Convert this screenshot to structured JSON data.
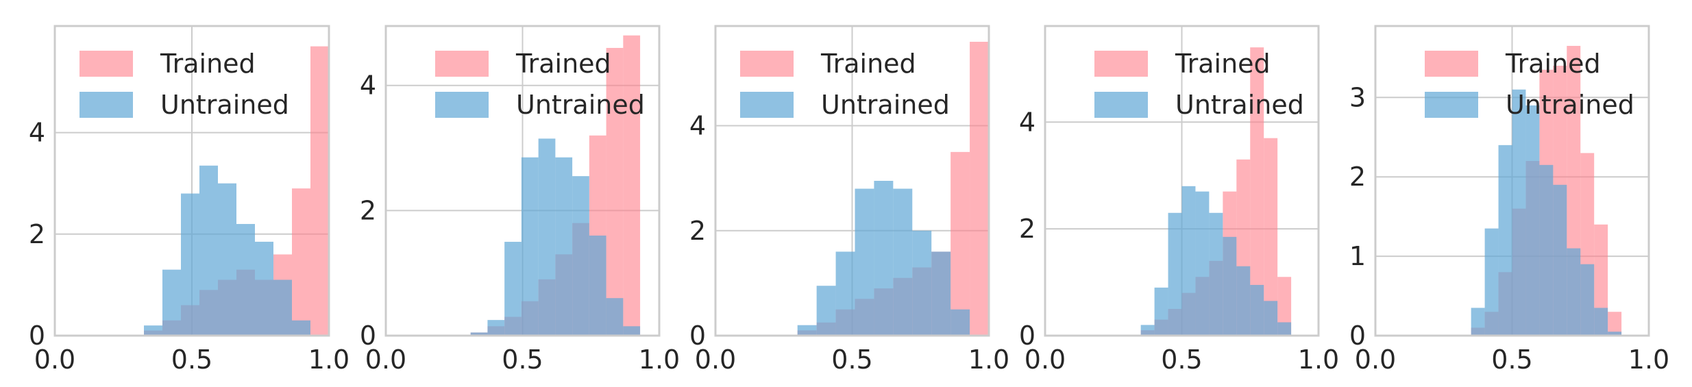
{
  "figure": {
    "colors": {
      "trained": "#ff7f8a",
      "untrained": "#5fa6d6",
      "grid": "#cccccc",
      "frame": "#cccccc",
      "text": "#262626"
    }
  },
  "chart_data": [
    {
      "type": "histogram",
      "title": "",
      "xlabel": "",
      "ylabel": "",
      "xlim": [
        0.0,
        1.0
      ],
      "ylim": [
        0,
        6.1
      ],
      "xticks": [
        0.0,
        0.5,
        1.0
      ],
      "xtick_labels": [
        "0.0",
        "0.5",
        "1.0"
      ],
      "yticks": [
        0,
        2,
        4
      ],
      "ytick_labels": [
        "0",
        "2",
        "4"
      ],
      "grid": true,
      "legend": "top-left",
      "bin_edges": [
        0.325,
        0.3925,
        0.46,
        0.5275,
        0.595,
        0.6625,
        0.73,
        0.7975,
        0.865,
        0.9325,
        1.0
      ],
      "series": [
        {
          "name": "Trained",
          "color": "#ff7f8a",
          "values": [
            0.1,
            0.3,
            0.6,
            0.9,
            1.1,
            1.3,
            1.1,
            1.6,
            2.9,
            5.7
          ]
        },
        {
          "name": "Untrained",
          "color": "#5fa6d6",
          "values": [
            0.2,
            1.3,
            2.8,
            3.35,
            3.0,
            2.2,
            1.85,
            1.1,
            0.3,
            0.0
          ]
        }
      ]
    },
    {
      "type": "histogram",
      "title": "",
      "xlabel": "",
      "ylabel": "",
      "xlim": [
        0.0,
        1.0
      ],
      "ylim": [
        0,
        4.95
      ],
      "xticks": [
        0.0,
        0.5,
        1.0
      ],
      "xtick_labels": [
        "0.0",
        "0.5",
        "1.0"
      ],
      "yticks": [
        0,
        2,
        4
      ],
      "ytick_labels": [
        "0",
        "2",
        "4"
      ],
      "grid": true,
      "legend": "top-right",
      "bin_edges": [
        0.31,
        0.372,
        0.434,
        0.496,
        0.558,
        0.62,
        0.682,
        0.744,
        0.806,
        0.868,
        0.93
      ],
      "series": [
        {
          "name": "Trained",
          "color": "#ff7f8a",
          "values": [
            0.05,
            0.15,
            0.3,
            0.55,
            0.9,
            1.3,
            1.8,
            3.2,
            4.6,
            4.8
          ]
        },
        {
          "name": "Untrained",
          "color": "#5fa6d6",
          "values": [
            0.05,
            0.25,
            1.5,
            2.85,
            3.15,
            2.85,
            2.55,
            1.6,
            0.6,
            0.15
          ]
        }
      ]
    },
    {
      "type": "histogram",
      "title": "",
      "xlabel": "",
      "ylabel": "",
      "xlim": [
        0.0,
        1.0
      ],
      "ylim": [
        0,
        5.9
      ],
      "xticks": [
        0.0,
        0.5,
        1.0
      ],
      "xtick_labels": [
        "0.0",
        "0.5",
        "1.0"
      ],
      "yticks": [
        0,
        2,
        4
      ],
      "ytick_labels": [
        "0",
        "2",
        "4"
      ],
      "grid": true,
      "legend": "top-left",
      "bin_edges": [
        0.3,
        0.37,
        0.44,
        0.51,
        0.58,
        0.65,
        0.72,
        0.79,
        0.86,
        0.93,
        1.0
      ],
      "series": [
        {
          "name": "Trained",
          "color": "#ff7f8a",
          "values": [
            0.1,
            0.25,
            0.5,
            0.7,
            0.9,
            1.1,
            1.3,
            1.6,
            3.5,
            5.6
          ]
        },
        {
          "name": "Untrained",
          "color": "#5fa6d6",
          "values": [
            0.2,
            0.95,
            1.6,
            2.8,
            2.95,
            2.8,
            2.0,
            1.6,
            0.5,
            0.0
          ]
        }
      ]
    },
    {
      "type": "histogram",
      "title": "",
      "xlabel": "",
      "ylabel": "",
      "xlim": [
        0.0,
        1.0
      ],
      "ylim": [
        0,
        5.8
      ],
      "xticks": [
        0.0,
        0.5,
        1.0
      ],
      "xtick_labels": [
        "0.0",
        "0.5",
        "1.0"
      ],
      "yticks": [
        0,
        2,
        4
      ],
      "ytick_labels": [
        "0",
        "2",
        "4"
      ],
      "grid": true,
      "legend": "top-right",
      "bin_edges": [
        0.35,
        0.4,
        0.45,
        0.5,
        0.55,
        0.6,
        0.65,
        0.7,
        0.75,
        0.8,
        0.85,
        0.9
      ],
      "series": [
        {
          "name": "Trained",
          "color": "#ff7f8a",
          "values": [
            0.1,
            0.3,
            0.5,
            0.8,
            1.1,
            1.4,
            2.7,
            3.3,
            5.4,
            3.7,
            1.1
          ]
        },
        {
          "name": "Untrained",
          "color": "#5fa6d6",
          "values": [
            0.2,
            0.9,
            2.3,
            2.8,
            2.7,
            2.3,
            1.85,
            1.3,
            0.95,
            0.65,
            0.25
          ]
        }
      ]
    },
    {
      "type": "histogram",
      "title": "",
      "xlabel": "",
      "ylabel": "",
      "xlim": [
        0.0,
        1.0
      ],
      "ylim": [
        0,
        3.9
      ],
      "xticks": [
        0.0,
        0.5,
        1.0
      ],
      "xtick_labels": [
        "0.0",
        "0.5",
        "1.0"
      ],
      "yticks": [
        0,
        1,
        2,
        3
      ],
      "ytick_labels": [
        "0",
        "1",
        "2",
        "3"
      ],
      "grid": true,
      "legend": "top-right",
      "bin_edges": [
        0.35,
        0.4,
        0.45,
        0.5,
        0.55,
        0.6,
        0.65,
        0.7,
        0.75,
        0.8,
        0.85,
        0.9
      ],
      "series": [
        {
          "name": "Trained",
          "color": "#ff7f8a",
          "values": [
            0.1,
            0.3,
            0.8,
            1.6,
            2.2,
            3.35,
            3.4,
            3.65,
            2.3,
            1.4,
            0.3
          ]
        },
        {
          "name": "Untrained",
          "color": "#5fa6d6",
          "values": [
            0.35,
            1.35,
            2.4,
            3.1,
            2.9,
            2.15,
            1.9,
            1.1,
            0.9,
            0.35,
            0.05
          ]
        }
      ]
    }
  ]
}
